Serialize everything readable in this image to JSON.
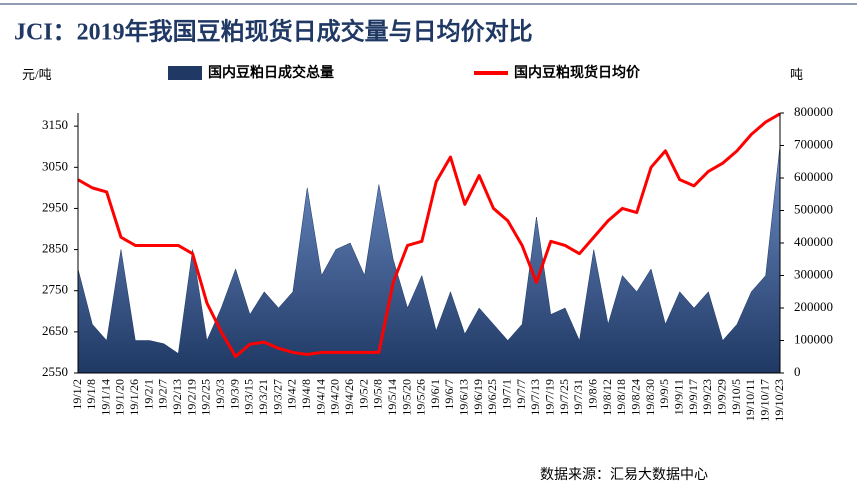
{
  "chart_data": {
    "type": "bar-area-line",
    "title": "JCI：2019年我国豆粕现货日成交量与日均价对比",
    "y_label": "元/吨",
    "y2_label": "吨",
    "source": "数据来源：汇易大数据中心",
    "categories": [
      "19/1/2",
      "19/1/8",
      "19/1/14",
      "19/1/20",
      "19/1/26",
      "19/2/1",
      "19/2/7",
      "19/2/13",
      "19/2/19",
      "19/2/25",
      "19/3/3",
      "19/3/9",
      "19/3/15",
      "19/3/21",
      "19/3/27",
      "19/4/2",
      "19/4/8",
      "19/4/14",
      "19/4/20",
      "19/4/26",
      "19/5/2",
      "19/5/8",
      "19/5/14",
      "19/5/20",
      "19/5/26",
      "19/6/1",
      "19/6/7",
      "19/6/13",
      "19/6/19",
      "19/6/25",
      "19/7/1",
      "19/7/7",
      "19/7/13",
      "19/7/19",
      "19/7/25",
      "19/7/31",
      "19/8/6",
      "19/8/12",
      "19/8/18",
      "19/8/24",
      "19/8/30",
      "19/9/5",
      "19/9/11",
      "19/9/17",
      "19/9/23",
      "19/9/29",
      "19/10/5",
      "19/10/11",
      "19/10/17",
      "19/10/23"
    ],
    "series": [
      {
        "name": "国内豆粕日成交总量",
        "color": "#1f3864",
        "axis": "y2",
        "style": "area",
        "values": [
          320000,
          150000,
          100000,
          380000,
          100000,
          100000,
          90000,
          60000,
          380000,
          100000,
          200000,
          320000,
          180000,
          250000,
          200000,
          250000,
          570000,
          300000,
          380000,
          400000,
          300000,
          580000,
          350000,
          200000,
          300000,
          130000,
          250000,
          120000,
          200000,
          150000,
          100000,
          150000,
          480000,
          180000,
          200000,
          100000,
          380000,
          150000,
          300000,
          250000,
          320000,
          150000,
          250000,
          200000,
          250000,
          100000,
          150000,
          250000,
          300000,
          700000
        ]
      },
      {
        "name": "国内豆粕现货日均价",
        "color": "#ff0000",
        "axis": "y",
        "style": "line",
        "values": [
          3020,
          3000,
          2990,
          2880,
          2860,
          2860,
          2860,
          2860,
          2840,
          2720,
          2650,
          2590,
          2620,
          2625,
          2610,
          2600,
          2595,
          2600,
          2600,
          2600,
          2600,
          2600,
          2770,
          2860,
          2870,
          3015,
          3075,
          2960,
          3030,
          2950,
          2920,
          2860,
          2770,
          2870,
          2860,
          2840,
          2880,
          2920,
          2950,
          2940,
          3050,
          3090,
          3020,
          3005,
          3040,
          3060,
          3090,
          3130,
          3160,
          3180
        ]
      }
    ],
    "ylim": [
      2550,
      3182
    ],
    "yticks": [
      2550,
      2650,
      2750,
      2850,
      2950,
      3050,
      3150
    ],
    "y2lim": [
      0,
      800000
    ],
    "y2ticks": [
      0,
      100000,
      200000,
      300000,
      400000,
      500000,
      600000,
      700000,
      800000
    ]
  }
}
